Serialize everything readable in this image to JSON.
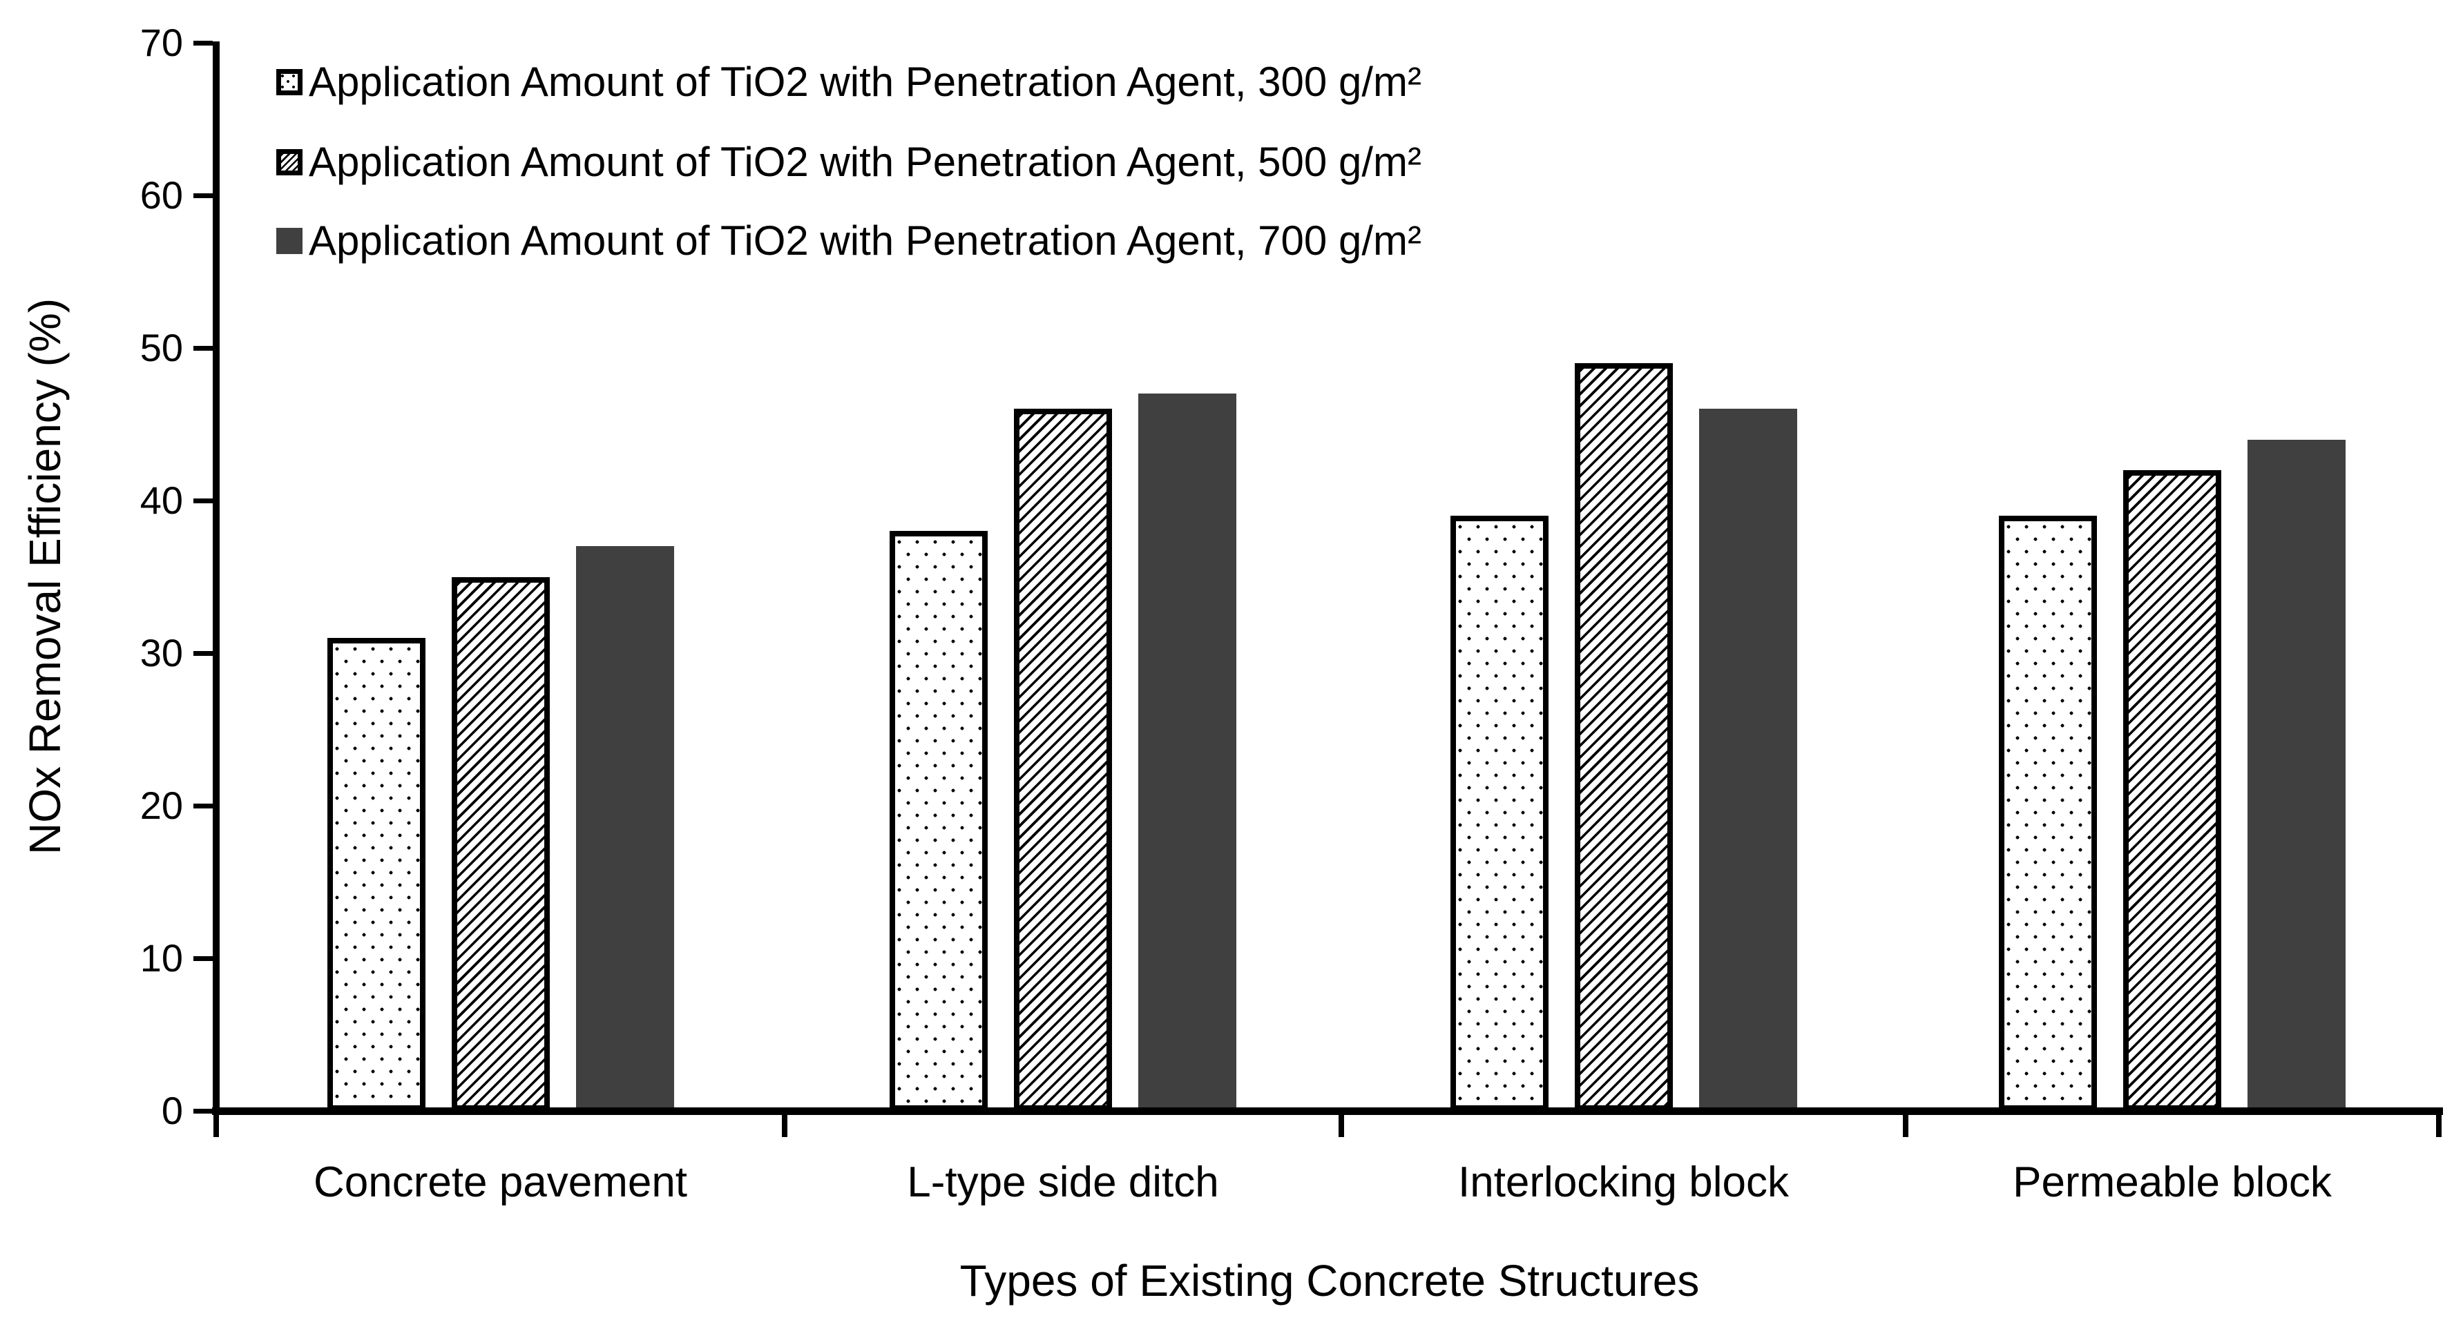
{
  "chart_data": {
    "type": "bar",
    "title": "",
    "xlabel": "Types of Existing Concrete Structures",
    "ylabel": "NOx Removal Efficiency (%)",
    "categories": [
      "Concrete pavement",
      "L-type side ditch",
      "Interlocking block",
      "Permeable block"
    ],
    "series": [
      {
        "name": "Application Amount of TiO2 with Penetration Agent, 300 g/m²",
        "pattern": "dots",
        "values": [
          31,
          38,
          39,
          39
        ]
      },
      {
        "name": "Application Amount of TiO2 with Penetration Agent, 500 g/m²",
        "pattern": "diagonal-hatch",
        "values": [
          35,
          46,
          49,
          42
        ]
      },
      {
        "name": "Application Amount of TiO2 with Penetration Agent, 700 g/m²",
        "pattern": "solid",
        "values": [
          37,
          47,
          46,
          44
        ]
      }
    ],
    "ylim": [
      0,
      70
    ],
    "yticks": [
      0,
      10,
      20,
      30,
      40,
      50,
      60,
      70
    ],
    "grid": false,
    "legend_position": "top-left",
    "colors": {
      "solid_bar": "#404040",
      "axis": "#000000",
      "pattern_ink": "#000000",
      "background": "#ffffff"
    }
  }
}
